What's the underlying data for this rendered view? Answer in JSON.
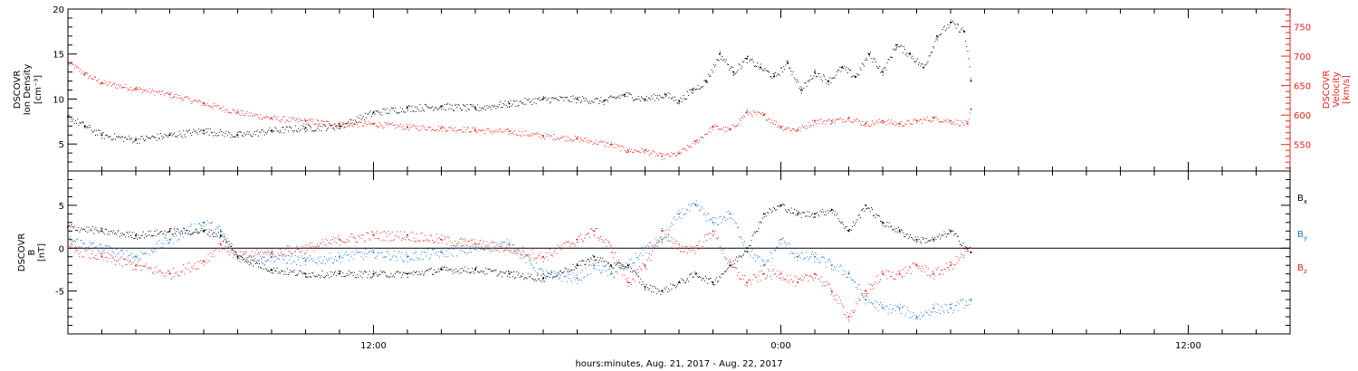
{
  "figure": {
    "xaxis_title": "hours:minutes, Aug. 21, 2017 - Aug. 22, 2017",
    "xlim_hours": [
      3.0,
      39.0
    ],
    "xticks": [
      {
        "h": 12,
        "label": "12:00"
      },
      {
        "h": 24,
        "label": "0:00"
      },
      {
        "h": 36,
        "label": "12:00"
      }
    ]
  },
  "panels": {
    "plasma": {
      "left_label": [
        "DSCOVR",
        "Ion Density",
        "[cm⁻³]"
      ],
      "right_label": [
        "DSCOVR",
        "Velocity",
        "[km/s]"
      ],
      "left_ylim": [
        2,
        20
      ],
      "right_ylim": [
        505,
        780
      ],
      "left_ticks": [
        "5",
        "10",
        "15",
        "20"
      ],
      "right_ticks": [
        "550",
        "600",
        "650",
        "700",
        "750"
      ]
    },
    "magnetic": {
      "left_label": [
        "DSCOVR",
        "B",
        "[nT]"
      ],
      "ylim": [
        -10,
        9
      ],
      "ticks": [
        "-5",
        "0",
        "5"
      ],
      "legend": [
        {
          "name": "B",
          "sub": "x",
          "color": "#000000"
        },
        {
          "name": "B",
          "sub": "y",
          "color": "#1f78d1"
        },
        {
          "name": "B",
          "sub": "z",
          "color": "#e8231f"
        }
      ]
    }
  },
  "chart_data": [
    {
      "type": "scatter",
      "title": "",
      "xlabel": "hours:minutes, Aug. 21, 2017 - Aug. 22, 2017",
      "ylabel": "DSCOVR Ion Density [cm⁻³]",
      "y2label": "DSCOVR Velocity [km/s]",
      "x_unit": "hours since 2017-08-21 00:00 UT",
      "xlim": [
        3.0,
        39.0
      ],
      "ylim": [
        2,
        20
      ],
      "y2lim": [
        505,
        780
      ],
      "series": [
        {
          "name": "Ion Density",
          "axis": "left",
          "color": "#000000",
          "x": [
            3.0,
            3.5,
            4.0,
            5.0,
            6.0,
            7.0,
            8.0,
            9.0,
            10.0,
            11.0,
            12.0,
            13.0,
            14.0,
            15.0,
            16.0,
            17.0,
            18.0,
            18.8,
            19.4,
            20.0,
            20.6,
            21.0,
            21.4,
            21.8,
            22.2,
            22.6,
            23.0,
            23.4,
            23.8,
            24.2,
            24.6,
            25.0,
            25.4,
            25.8,
            26.2,
            26.6,
            27.0,
            27.4,
            27.8,
            28.2,
            28.6,
            29.0,
            29.4,
            29.6
          ],
          "y": [
            8,
            7,
            6,
            5.5,
            6,
            6.5,
            6,
            6.5,
            6.8,
            7,
            8.5,
            9,
            9.2,
            9,
            9.5,
            10,
            10,
            9.8,
            10.5,
            10,
            10.5,
            9.8,
            11,
            12,
            15,
            13,
            14.5,
            13.5,
            12.5,
            14,
            11,
            13,
            12,
            13.5,
            12.5,
            15,
            13,
            16,
            15,
            13.5,
            17,
            18.5,
            17.5,
            12
          ]
        },
        {
          "name": "Velocity",
          "axis": "right",
          "color": "#e8231f",
          "x": [
            3.0,
            3.5,
            4.0,
            5.0,
            6.0,
            7.0,
            8.0,
            9.0,
            10.0,
            11.0,
            12.0,
            13.0,
            14.0,
            15.0,
            16.0,
            17.0,
            18.0,
            19.0,
            19.5,
            20.0,
            20.5,
            21.0,
            21.5,
            22.0,
            22.5,
            23.0,
            23.5,
            24.0,
            24.5,
            25.0,
            25.5,
            26.0,
            26.5,
            27.0,
            27.5,
            28.0,
            28.5,
            29.0,
            29.5,
            29.6
          ],
          "y": [
            690,
            670,
            655,
            645,
            635,
            620,
            605,
            595,
            590,
            585,
            585,
            580,
            578,
            575,
            572,
            565,
            560,
            550,
            540,
            540,
            530,
            535,
            555,
            580,
            575,
            605,
            600,
            580,
            575,
            590,
            590,
            595,
            585,
            590,
            585,
            590,
            595,
            590,
            585,
            610
          ]
        }
      ]
    },
    {
      "type": "scatter",
      "title": "",
      "xlabel": "hours:minutes, Aug. 21, 2017 - Aug. 22, 2017",
      "ylabel": "DSCOVR B [nT]",
      "x_unit": "hours since 2017-08-21 00:00 UT",
      "xlim": [
        3.0,
        39.0
      ],
      "ylim": [
        -10,
        9
      ],
      "reference_line": 0,
      "series": [
        {
          "name": "Bx",
          "color": "#000000",
          "x": [
            3.0,
            4.0,
            5.0,
            6.0,
            7.0,
            7.5,
            8.0,
            9.0,
            10.0,
            11.0,
            12.0,
            13.0,
            14.0,
            15.0,
            16.0,
            17.0,
            18.0,
            18.5,
            19.0,
            19.5,
            20.0,
            20.5,
            21.0,
            21.5,
            22.0,
            22.5,
            23.0,
            23.5,
            24.0,
            24.5,
            25.0,
            25.5,
            26.0,
            26.5,
            27.0,
            27.5,
            28.0,
            28.5,
            29.0,
            29.6
          ],
          "y": [
            2.5,
            2,
            1.5,
            2,
            2,
            1.5,
            -1,
            -2.5,
            -3,
            -3,
            -3,
            -3,
            -2.5,
            -2.5,
            -3,
            -3.5,
            -2,
            -1,
            -2,
            -2,
            -4.5,
            -5,
            -4,
            -3,
            -4,
            -2,
            0,
            4,
            5,
            4,
            4,
            4.5,
            2,
            5,
            3,
            2,
            1,
            1,
            2,
            -0.5
          ]
        },
        {
          "name": "By",
          "color": "#1f78d1",
          "x": [
            3.0,
            4.0,
            5.0,
            6.0,
            7.0,
            7.5,
            8.0,
            9.0,
            10.0,
            11.0,
            12.0,
            13.0,
            14.0,
            15.0,
            16.0,
            17.0,
            18.0,
            18.5,
            19.0,
            19.5,
            20.0,
            20.5,
            21.0,
            21.5,
            22.0,
            22.5,
            23.0,
            23.5,
            24.0,
            24.5,
            25.0,
            25.5,
            26.0,
            26.5,
            27.0,
            27.5,
            28.0,
            28.5,
            29.0,
            29.6
          ],
          "y": [
            1,
            0,
            -1,
            1,
            3,
            2,
            -1,
            -1,
            -1.5,
            -1,
            -0.5,
            -1,
            -0.5,
            0,
            0.5,
            -3,
            -3.5,
            -2,
            -3,
            -2,
            0,
            1,
            4,
            5,
            3,
            4,
            0,
            -2,
            1,
            -1,
            -1,
            -2,
            -3,
            -6,
            -7,
            -7,
            -8,
            -7,
            -7,
            -6
          ]
        },
        {
          "name": "Bz",
          "color": "#e8231f",
          "x": [
            3.0,
            4.0,
            5.0,
            6.0,
            7.0,
            7.5,
            8.0,
            9.0,
            10.0,
            11.0,
            12.0,
            13.0,
            14.0,
            15.0,
            16.0,
            17.0,
            18.0,
            18.5,
            19.0,
            19.5,
            20.0,
            20.5,
            21.0,
            21.5,
            22.0,
            22.5,
            23.0,
            23.5,
            24.0,
            24.5,
            25.0,
            25.5,
            26.0,
            26.5,
            27.0,
            27.5,
            28.0,
            28.5,
            29.0,
            29.6
          ],
          "y": [
            0,
            -1,
            -2,
            -3,
            -1.5,
            0.5,
            -1,
            -0.5,
            0,
            1,
            1.5,
            1.5,
            1,
            0.5,
            0,
            -1,
            1,
            2,
            0,
            -4,
            -2,
            2,
            0,
            0,
            2,
            -2,
            -4,
            -3,
            -3,
            -4,
            -3,
            -5,
            -8,
            -5,
            -3,
            -3,
            -2,
            -3,
            -2,
            0
          ]
        }
      ]
    }
  ]
}
